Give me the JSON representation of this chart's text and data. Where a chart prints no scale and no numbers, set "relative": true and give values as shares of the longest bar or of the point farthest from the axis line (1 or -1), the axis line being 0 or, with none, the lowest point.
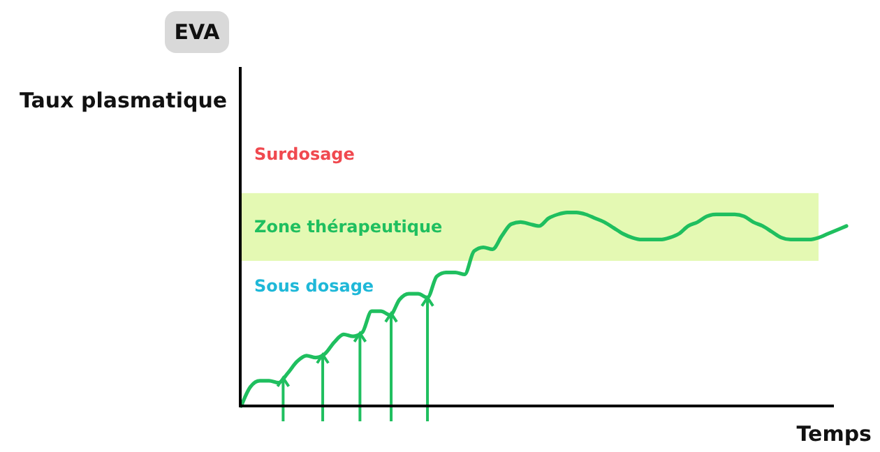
{
  "chart_data": {
    "type": "line",
    "title": "EVA",
    "xlabel": "Temps",
    "ylabel": "Taux plasmatique",
    "relative": true,
    "tick_labels": false,
    "categories": [
      null,
      null,
      null,
      null,
      null,
      null,
      null,
      null,
      null,
      null,
      null,
      null,
      null,
      null,
      null,
      null,
      null,
      null,
      null,
      null,
      null,
      null,
      null,
      null,
      null,
      null,
      null,
      null,
      null,
      null,
      null,
      null,
      null,
      null,
      null,
      null,
      null,
      null,
      null,
      null,
      null,
      null,
      null,
      null,
      null,
      null,
      null,
      null,
      null,
      null,
      null,
      null,
      null,
      null,
      null,
      null,
      null,
      null,
      null,
      null,
      null,
      null,
      null,
      null,
      null,
      null
    ],
    "series": [
      {
        "color": "#1fbf5f",
        "values": [
          0,
          0.1,
          0.13,
          0.13,
          0.12,
          0.17,
          0.23,
          0.26,
          0.25,
          0.27,
          0.33,
          0.37,
          0.36,
          0.38,
          0.49,
          0.49,
          0.47,
          0.55,
          0.58,
          0.58,
          0.56,
          0.67,
          0.69,
          0.69,
          0.68,
          0.8,
          0.82,
          0.81,
          0.88,
          0.94,
          0.95,
          0.94,
          0.93,
          0.97,
          0.99,
          1,
          1,
          0.99,
          0.97,
          0.95,
          0.92,
          0.89,
          0.87,
          0.86,
          0.86,
          0.86,
          0.87,
          0.89,
          0.93,
          0.95,
          0.98,
          0.99,
          0.99,
          0.99,
          0.98,
          0.95,
          0.93,
          0.9,
          0.87,
          0.86,
          0.86,
          0.86,
          0.87,
          0.89,
          0.91,
          0.93
        ]
      }
    ],
    "bands": [
      {
        "axis": "y",
        "from": 0.75,
        "to": 1.1,
        "label": "Zone thérapeutique",
        "color": "#e4f9b3"
      }
    ],
    "annotations": [
      "Surdosage",
      "Sous dosage"
    ]
  }
}
